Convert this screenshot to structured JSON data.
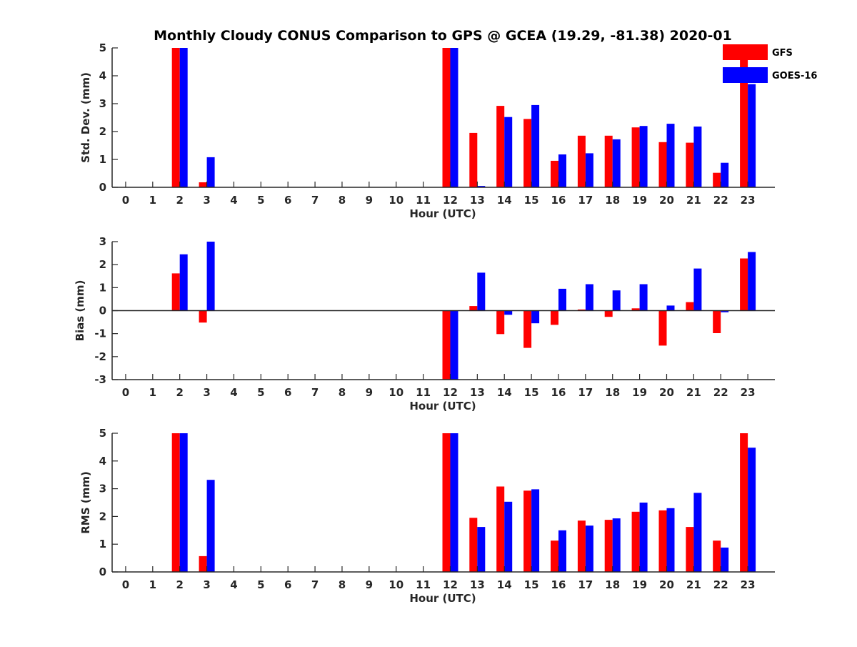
{
  "chart_data": [
    {
      "type": "bar",
      "title": "Monthly Cloudy CONUS Comparison to GPS @ GCEA (19.29, -81.38) 2020-01",
      "xlabel": "Hour (UTC)",
      "ylabel": "Std. Dev. (mm)",
      "categories": [
        "0",
        "1",
        "2",
        "3",
        "4",
        "5",
        "6",
        "7",
        "8",
        "9",
        "10",
        "11",
        "12",
        "13",
        "14",
        "15",
        "16",
        "17",
        "18",
        "19",
        "20",
        "21",
        "22",
        "23"
      ],
      "ylim": [
        0,
        5
      ],
      "yticks": [
        0,
        1,
        2,
        3,
        4,
        5
      ],
      "grid": false,
      "legend_position": "top-right",
      "series": [
        {
          "name": "GFS",
          "color": "#ff0000",
          "values": [
            null,
            null,
            5,
            0.18,
            null,
            null,
            null,
            null,
            null,
            null,
            null,
            null,
            5,
            1.95,
            2.92,
            2.45,
            0.95,
            1.85,
            1.85,
            2.15,
            1.62,
            1.6,
            0.52,
            5
          ]
        },
        {
          "name": "GOES-16",
          "color": "#0000ff",
          "values": [
            null,
            null,
            5,
            1.08,
            null,
            null,
            null,
            null,
            null,
            null,
            null,
            null,
            5,
            0.05,
            2.52,
            2.95,
            1.18,
            1.22,
            1.72,
            2.2,
            2.28,
            2.18,
            0.88,
            3.7
          ]
        }
      ]
    },
    {
      "type": "bar",
      "xlabel": "Hour (UTC)",
      "ylabel": "Bias (mm)",
      "categories": [
        "0",
        "1",
        "2",
        "3",
        "4",
        "5",
        "6",
        "7",
        "8",
        "9",
        "10",
        "11",
        "12",
        "13",
        "14",
        "15",
        "16",
        "17",
        "18",
        "19",
        "20",
        "21",
        "22",
        "23"
      ],
      "ylim": [
        -3,
        3
      ],
      "yticks": [
        -3,
        -2,
        -1,
        0,
        1,
        2,
        3
      ],
      "grid": false,
      "zero_line": true,
      "series": [
        {
          "name": "GFS",
          "color": "#ff0000",
          "values": [
            null,
            null,
            1.62,
            -0.52,
            null,
            null,
            null,
            null,
            null,
            null,
            null,
            null,
            -3,
            0.2,
            -1.02,
            -1.62,
            -0.62,
            0.05,
            -0.27,
            0.1,
            -1.52,
            0.37,
            -0.98,
            2.27
          ]
        },
        {
          "name": "GOES-16",
          "color": "#0000ff",
          "values": [
            null,
            null,
            2.45,
            3.0,
            null,
            null,
            null,
            null,
            null,
            null,
            null,
            null,
            -3,
            1.65,
            -0.18,
            -0.55,
            0.95,
            1.15,
            0.88,
            1.15,
            0.22,
            1.83,
            -0.07,
            2.55
          ]
        }
      ]
    },
    {
      "type": "bar",
      "xlabel": "Hour (UTC)",
      "ylabel": "RMS (mm)",
      "categories": [
        "0",
        "1",
        "2",
        "3",
        "4",
        "5",
        "6",
        "7",
        "8",
        "9",
        "10",
        "11",
        "12",
        "13",
        "14",
        "15",
        "16",
        "17",
        "18",
        "19",
        "20",
        "21",
        "22",
        "23"
      ],
      "ylim": [
        0,
        5
      ],
      "yticks": [
        0,
        1,
        2,
        3,
        4,
        5
      ],
      "grid": false,
      "series": [
        {
          "name": "GFS",
          "color": "#ff0000",
          "values": [
            null,
            null,
            5,
            0.57,
            null,
            null,
            null,
            null,
            null,
            null,
            null,
            null,
            5,
            1.95,
            3.08,
            2.93,
            1.13,
            1.85,
            1.88,
            2.17,
            2.22,
            1.62,
            1.13,
            5
          ]
        },
        {
          "name": "GOES-16",
          "color": "#0000ff",
          "values": [
            null,
            null,
            5,
            3.32,
            null,
            null,
            null,
            null,
            null,
            null,
            null,
            null,
            5,
            1.62,
            2.53,
            2.98,
            1.5,
            1.67,
            1.93,
            2.5,
            2.3,
            2.85,
            0.88,
            4.48
          ]
        }
      ]
    }
  ]
}
